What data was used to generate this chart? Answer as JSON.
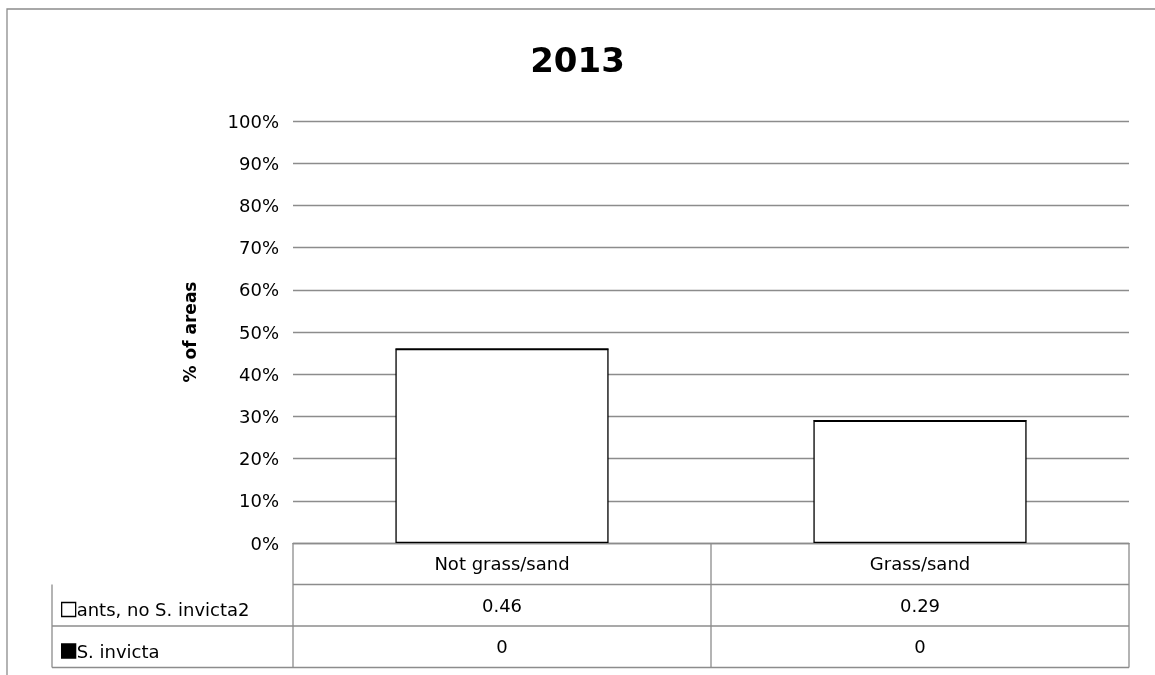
{
  "chart_data": {
    "type": "bar",
    "title": "2013",
    "ylabel": "% of areas",
    "categories": [
      "Not grass/sand",
      "Grass/sand"
    ],
    "series": [
      {
        "name": "ants, no S. invicta2",
        "color": "#ffffff",
        "values": [
          0.46,
          0.29
        ]
      },
      {
        "name": "S. invicta",
        "color": "#000000",
        "values": [
          0,
          0
        ]
      }
    ],
    "stacked": true,
    "ylim": [
      0,
      1
    ],
    "yticks": [
      {
        "value": 0,
        "label": "0%"
      },
      {
        "value": 0.1,
        "label": "10%"
      },
      {
        "value": 0.2,
        "label": "20%"
      },
      {
        "value": 0.3,
        "label": "30%"
      },
      {
        "value": 0.4,
        "label": "40%"
      },
      {
        "value": 0.5,
        "label": "50%"
      },
      {
        "value": 0.6,
        "label": "60%"
      },
      {
        "value": 0.7,
        "label": "70%"
      },
      {
        "value": 0.8,
        "label": "80%"
      },
      {
        "value": 0.9,
        "label": "90%"
      },
      {
        "value": 1,
        "label": "100%"
      }
    ],
    "grid": "y",
    "legend": "bottom left",
    "data_labels": true
  }
}
